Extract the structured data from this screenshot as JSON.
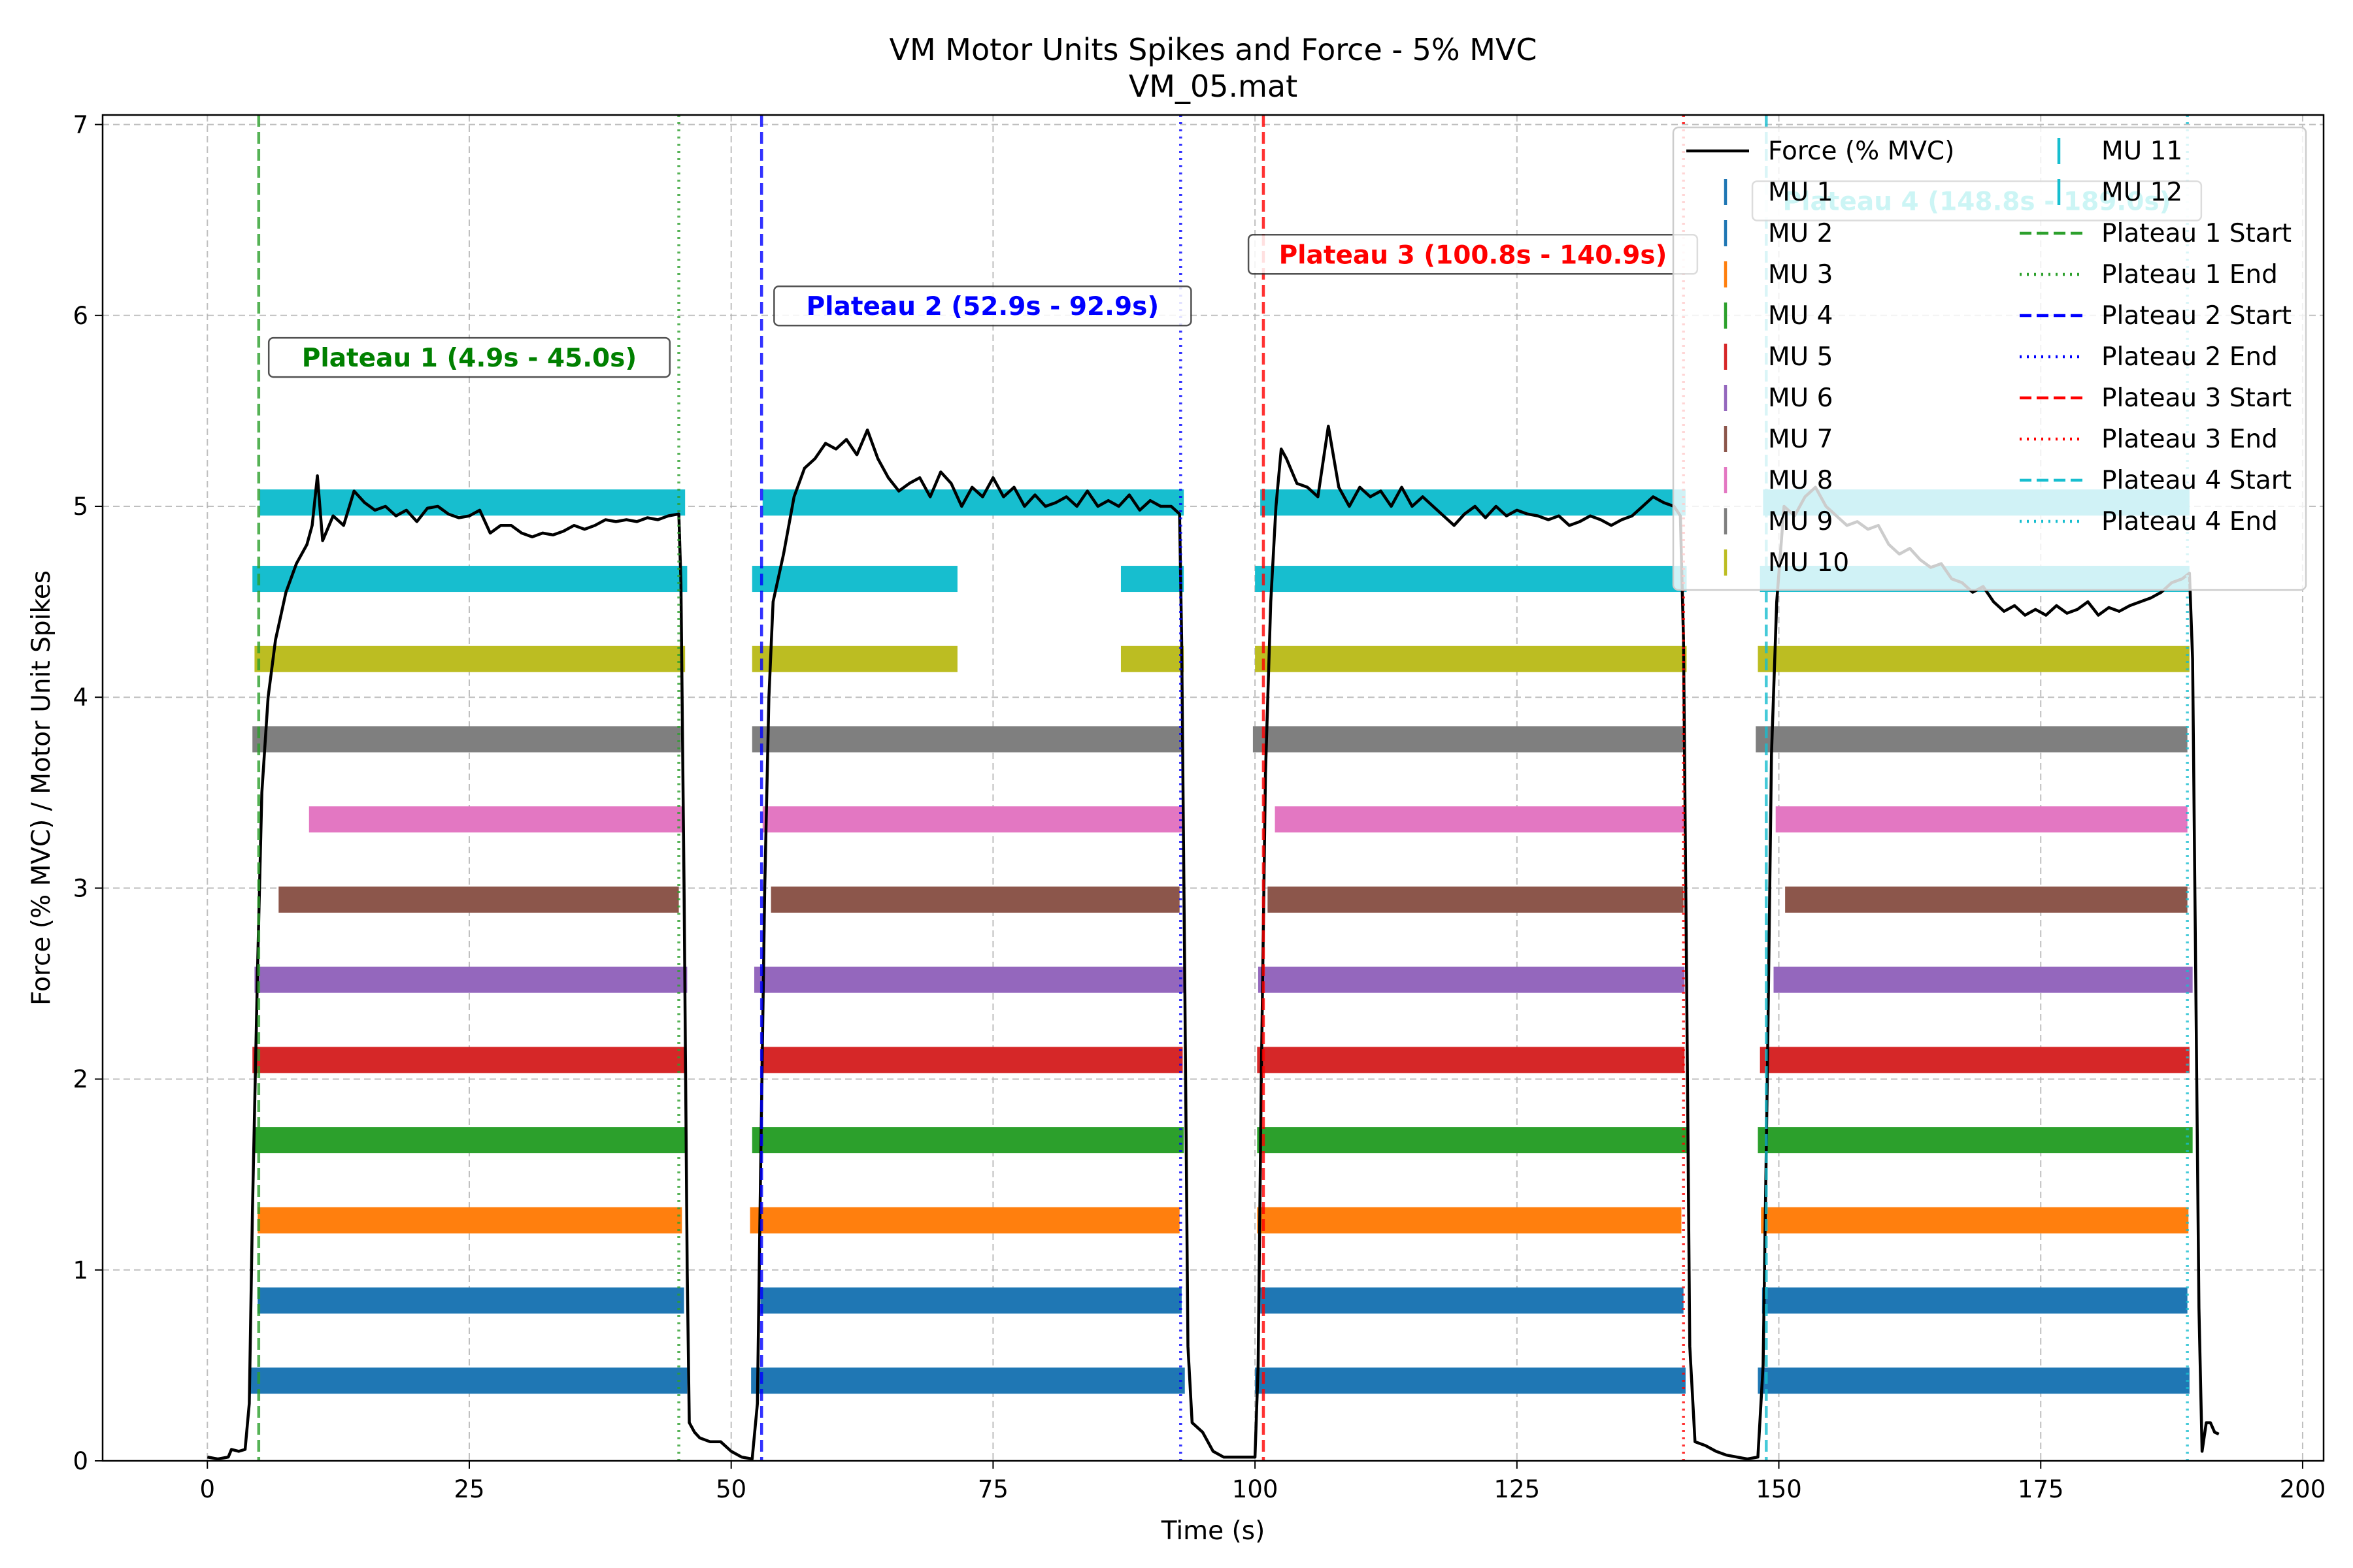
{
  "chart_data": {
    "type": "line",
    "title": "VM Motor Units Spikes and Force - 5% MVC",
    "subtitle": "VM_05.mat",
    "xlabel": "Time (s)",
    "ylabel": "Force (% MVC) / Motor Unit Spikes",
    "xlim": [
      -10,
      202
    ],
    "ylim": [
      0,
      7.05
    ],
    "x_ticks": [
      0,
      25,
      50,
      75,
      100,
      125,
      150,
      175,
      200
    ],
    "y_ticks": [
      0,
      1,
      2,
      3,
      4,
      5,
      6,
      7
    ],
    "x_tick_labels": [
      "0",
      "25",
      "50",
      "75",
      "100",
      "125",
      "150",
      "175",
      "200"
    ],
    "y_tick_labels": [
      "0",
      "1",
      "2",
      "3",
      "4",
      "5",
      "6",
      "7"
    ],
    "grid": true,
    "legend_placement": "top-right",
    "force": {
      "name": "Force (% MVC)",
      "color": "#000000",
      "points": [
        [
          0,
          0.02
        ],
        [
          1,
          0.01
        ],
        [
          2,
          0.02
        ],
        [
          2.3,
          0.06
        ],
        [
          3,
          0.05
        ],
        [
          3.6,
          0.06
        ],
        [
          4.0,
          0.3
        ],
        [
          4.3,
          1.3
        ],
        [
          4.8,
          2.6
        ],
        [
          5.2,
          3.5
        ],
        [
          5.8,
          4.0
        ],
        [
          6.5,
          4.3
        ],
        [
          7.5,
          4.55
        ],
        [
          8.5,
          4.7
        ],
        [
          9.5,
          4.8
        ],
        [
          10,
          4.9
        ],
        [
          10.5,
          5.16
        ],
        [
          11,
          4.82
        ],
        [
          12,
          4.95
        ],
        [
          13,
          4.9
        ],
        [
          14,
          5.08
        ],
        [
          15,
          5.02
        ],
        [
          16,
          4.98
        ],
        [
          17,
          5.0
        ],
        [
          18,
          4.95
        ],
        [
          19,
          4.98
        ],
        [
          20,
          4.92
        ],
        [
          21,
          4.99
        ],
        [
          22,
          5.0
        ],
        [
          23,
          4.96
        ],
        [
          24,
          4.94
        ],
        [
          25,
          4.95
        ],
        [
          26,
          4.98
        ],
        [
          27,
          4.86
        ],
        [
          28,
          4.9
        ],
        [
          29,
          4.9
        ],
        [
          30,
          4.86
        ],
        [
          31,
          4.84
        ],
        [
          32,
          4.86
        ],
        [
          33,
          4.85
        ],
        [
          34,
          4.87
        ],
        [
          35,
          4.9
        ],
        [
          36,
          4.88
        ],
        [
          37,
          4.9
        ],
        [
          38,
          4.93
        ],
        [
          39,
          4.92
        ],
        [
          40,
          4.93
        ],
        [
          41,
          4.92
        ],
        [
          42,
          4.94
        ],
        [
          43,
          4.93
        ],
        [
          44,
          4.95
        ],
        [
          45,
          4.96
        ],
        [
          45.2,
          4.6
        ],
        [
          45.5,
          3.0
        ],
        [
          45.8,
          1.0
        ],
        [
          46,
          0.2
        ],
        [
          46.5,
          0.15
        ],
        [
          47,
          0.12
        ],
        [
          48,
          0.1
        ],
        [
          49,
          0.1
        ],
        [
          50,
          0.05
        ],
        [
          51,
          0.02
        ],
        [
          52,
          0.01
        ],
        [
          52.5,
          0.3
        ],
        [
          52.8,
          1.5
        ],
        [
          53.2,
          3.0
        ],
        [
          53.6,
          4.0
        ],
        [
          54,
          4.5
        ],
        [
          55,
          4.75
        ],
        [
          56,
          5.05
        ],
        [
          57,
          5.2
        ],
        [
          58,
          5.25
        ],
        [
          59,
          5.33
        ],
        [
          60,
          5.3
        ],
        [
          61,
          5.35
        ],
        [
          62,
          5.27
        ],
        [
          63,
          5.4
        ],
        [
          64,
          5.25
        ],
        [
          65,
          5.15
        ],
        [
          66,
          5.08
        ],
        [
          67,
          5.12
        ],
        [
          68,
          5.15
        ],
        [
          69,
          5.05
        ],
        [
          70,
          5.18
        ],
        [
          71,
          5.12
        ],
        [
          72,
          5.0
        ],
        [
          73,
          5.1
        ],
        [
          74,
          5.05
        ],
        [
          75,
          5.15
        ],
        [
          76,
          5.05
        ],
        [
          77,
          5.1
        ],
        [
          78,
          5.0
        ],
        [
          79,
          5.06
        ],
        [
          80,
          5.0
        ],
        [
          81,
          5.02
        ],
        [
          82,
          5.05
        ],
        [
          83,
          5.0
        ],
        [
          84,
          5.08
        ],
        [
          85,
          5.0
        ],
        [
          86,
          5.03
        ],
        [
          87,
          5.0
        ],
        [
          88,
          5.06
        ],
        [
          89,
          4.98
        ],
        [
          90,
          5.03
        ],
        [
          91,
          5.0
        ],
        [
          92,
          5.0
        ],
        [
          92.8,
          4.96
        ],
        [
          93,
          4.3
        ],
        [
          93.3,
          2.5
        ],
        [
          93.6,
          0.6
        ],
        [
          94,
          0.2
        ],
        [
          95,
          0.15
        ],
        [
          96,
          0.05
        ],
        [
          97,
          0.02
        ],
        [
          99,
          0.02
        ],
        [
          100,
          0.02
        ],
        [
          100.3,
          0.5
        ],
        [
          100.6,
          2.0
        ],
        [
          101,
          3.6
        ],
        [
          101.5,
          4.5
        ],
        [
          102,
          5.0
        ],
        [
          102.5,
          5.3
        ],
        [
          103,
          5.25
        ],
        [
          104,
          5.12
        ],
        [
          105,
          5.1
        ],
        [
          106,
          5.05
        ],
        [
          107,
          5.42
        ],
        [
          108,
          5.1
        ],
        [
          109,
          5.0
        ],
        [
          110,
          5.1
        ],
        [
          111,
          5.05
        ],
        [
          112,
          5.08
        ],
        [
          113,
          5.0
        ],
        [
          114,
          5.1
        ],
        [
          115,
          5.0
        ],
        [
          116,
          5.05
        ],
        [
          117,
          5.0
        ],
        [
          118,
          4.95
        ],
        [
          119,
          4.9
        ],
        [
          120,
          4.96
        ],
        [
          121,
          5.0
        ],
        [
          122,
          4.94
        ],
        [
          123,
          5.0
        ],
        [
          124,
          4.95
        ],
        [
          125,
          4.98
        ],
        [
          126,
          4.96
        ],
        [
          127,
          4.95
        ],
        [
          128,
          4.93
        ],
        [
          129,
          4.95
        ],
        [
          130,
          4.9
        ],
        [
          131,
          4.92
        ],
        [
          132,
          4.95
        ],
        [
          133,
          4.93
        ],
        [
          134,
          4.9
        ],
        [
          135,
          4.93
        ],
        [
          136,
          4.95
        ],
        [
          137,
          5.0
        ],
        [
          138,
          5.05
        ],
        [
          139,
          5.02
        ],
        [
          140,
          5.0
        ],
        [
          140.6,
          4.95
        ],
        [
          140.9,
          4.3
        ],
        [
          141.2,
          2.5
        ],
        [
          141.5,
          0.6
        ],
        [
          142,
          0.1
        ],
        [
          143,
          0.08
        ],
        [
          144,
          0.05
        ],
        [
          145,
          0.03
        ],
        [
          146,
          0.02
        ],
        [
          147,
          0.01
        ],
        [
          148,
          0.02
        ],
        [
          148.5,
          0.5
        ],
        [
          148.9,
          2.0
        ],
        [
          149.3,
          3.7
        ],
        [
          149.8,
          4.5
        ],
        [
          150.5,
          5.0
        ],
        [
          151.5,
          4.95
        ],
        [
          152.5,
          5.05
        ],
        [
          153.5,
          5.1
        ],
        [
          154.5,
          5.0
        ],
        [
          155.5,
          4.95
        ],
        [
          156.5,
          4.9
        ],
        [
          157.5,
          4.92
        ],
        [
          158.5,
          4.88
        ],
        [
          159.5,
          4.9
        ],
        [
          160.5,
          4.8
        ],
        [
          161.5,
          4.75
        ],
        [
          162.5,
          4.78
        ],
        [
          163.5,
          4.72
        ],
        [
          164.5,
          4.68
        ],
        [
          165.5,
          4.7
        ],
        [
          166.5,
          4.62
        ],
        [
          167.5,
          4.6
        ],
        [
          168.5,
          4.55
        ],
        [
          169.5,
          4.58
        ],
        [
          170.5,
          4.5
        ],
        [
          171.5,
          4.45
        ],
        [
          172.5,
          4.48
        ],
        [
          173.5,
          4.43
        ],
        [
          174.5,
          4.46
        ],
        [
          175.5,
          4.43
        ],
        [
          176.5,
          4.48
        ],
        [
          177.5,
          4.44
        ],
        [
          178.5,
          4.46
        ],
        [
          179.5,
          4.5
        ],
        [
          180.5,
          4.43
        ],
        [
          181.5,
          4.47
        ],
        [
          182.5,
          4.45
        ],
        [
          183.5,
          4.48
        ],
        [
          184.5,
          4.5
        ],
        [
          185.5,
          4.52
        ],
        [
          186.5,
          4.55
        ],
        [
          187.5,
          4.6
        ],
        [
          188.5,
          4.62
        ],
        [
          189.2,
          4.65
        ],
        [
          189.5,
          4.2
        ],
        [
          189.8,
          2.5
        ],
        [
          190.1,
          0.8
        ],
        [
          190.4,
          0.05
        ],
        [
          190.8,
          0.2
        ],
        [
          191.2,
          0.2
        ],
        [
          191.6,
          0.15
        ],
        [
          192,
          0.14
        ]
      ]
    },
    "motor_units": [
      {
        "name": "MU 1",
        "color": "#1f77b4",
        "y": 0.42,
        "segments": [
          [
            4.0,
            45.8
          ],
          [
            51.9,
            93.3
          ],
          [
            100.0,
            141.1
          ],
          [
            148.0,
            189.2
          ]
        ]
      },
      {
        "name": "MU 2",
        "color": "#1f77b4",
        "y": 0.84,
        "segments": [
          [
            4.8,
            45.5
          ],
          [
            52.8,
            93.0
          ],
          [
            100.5,
            140.9
          ],
          [
            148.4,
            189.0
          ]
        ]
      },
      {
        "name": "MU 3",
        "color": "#ff7f0e",
        "y": 1.26,
        "segments": [
          [
            4.8,
            45.3
          ],
          [
            51.8,
            92.8
          ],
          [
            100.2,
            140.7
          ],
          [
            148.3,
            189.1
          ]
        ]
      },
      {
        "name": "MU 4",
        "color": "#2ca02c",
        "y": 1.68,
        "segments": [
          [
            4.5,
            45.6
          ],
          [
            52.0,
            93.2
          ],
          [
            100.2,
            141.2
          ],
          [
            148.0,
            189.5
          ]
        ]
      },
      {
        "name": "MU 5",
        "color": "#d62728",
        "y": 2.1,
        "segments": [
          [
            4.3,
            45.6
          ],
          [
            52.8,
            93.1
          ],
          [
            100.2,
            141.0
          ],
          [
            148.2,
            189.2
          ]
        ]
      },
      {
        "name": "MU 6",
        "color": "#9467bd",
        "y": 2.52,
        "segments": [
          [
            4.5,
            45.8
          ],
          [
            52.2,
            93.3
          ],
          [
            100.3,
            141.0
          ],
          [
            149.5,
            189.5
          ]
        ]
      },
      {
        "name": "MU 7",
        "color": "#8c564b",
        "y": 2.94,
        "segments": [
          [
            6.8,
            45.0
          ],
          [
            53.8,
            92.8
          ],
          [
            101.2,
            140.9
          ],
          [
            150.6,
            189.0
          ]
        ]
      },
      {
        "name": "MU 8",
        "color": "#e377c2",
        "y": 3.36,
        "segments": [
          [
            9.7,
            45.5
          ],
          [
            53.0,
            93.0
          ],
          [
            101.9,
            141.0
          ],
          [
            149.7,
            189.0
          ]
        ]
      },
      {
        "name": "MU 9",
        "color": "#7f7f7f",
        "y": 3.78,
        "segments": [
          [
            4.3,
            45.2
          ],
          [
            52.0,
            93.0
          ],
          [
            99.8,
            141.0
          ],
          [
            147.8,
            189.0
          ]
        ]
      },
      {
        "name": "MU 10",
        "color": "#bcbd22",
        "y": 4.2,
        "segments": [
          [
            4.5,
            45.6
          ],
          [
            52.0,
            71.6
          ],
          [
            87.2,
            93.2
          ],
          [
            100.0,
            141.2
          ],
          [
            148.0,
            189.2
          ]
        ]
      },
      {
        "name": "MU 11",
        "color": "#17becf",
        "y": 4.62,
        "segments": [
          [
            4.3,
            45.8
          ],
          [
            52.0,
            71.6
          ],
          [
            87.2,
            93.2
          ],
          [
            100.0,
            141.2
          ],
          [
            148.2,
            189.2
          ]
        ]
      },
      {
        "name": "MU 12",
        "color": "#17becf",
        "y": 5.02,
        "segments": [
          [
            5.0,
            45.6
          ],
          [
            53.0,
            93.2
          ],
          [
            100.5,
            141.1
          ],
          [
            148.5,
            189.2
          ]
        ]
      }
    ],
    "plateaus": [
      {
        "label": "Plateau 1 (4.9s - 45.0s)",
        "start": 4.9,
        "end": 45.0,
        "color": "#008000",
        "line_color": "#2ca02c",
        "label_x": 25.0,
        "label_y": 5.78,
        "start_legend": "Plateau 1 Start",
        "end_legend": "Plateau 1 End"
      },
      {
        "label": "Plateau 2 (52.9s - 92.9s)",
        "start": 52.9,
        "end": 92.9,
        "color": "#0000ff",
        "line_color": "#0000ff",
        "label_x": 74.0,
        "label_y": 6.05,
        "start_legend": "Plateau 2 Start",
        "end_legend": "Plateau 2 End"
      },
      {
        "label": "Plateau 3 (100.8s - 140.9s)",
        "start": 100.8,
        "end": 140.9,
        "color": "#ff0000",
        "line_color": "#ff0000",
        "label_x": 120.8,
        "label_y": 6.32,
        "start_legend": "Plateau 3 Start",
        "end_legend": "Plateau 3 End"
      },
      {
        "label": "Plateau 4 (148.8s - 189.0s)",
        "start": 148.8,
        "end": 189.0,
        "color": "#00cccc",
        "line_color": "#17becf",
        "label_x": 168.9,
        "label_y": 6.6,
        "start_legend": "Plateau 4 Start",
        "end_legend": "Plateau 4 End"
      }
    ]
  }
}
